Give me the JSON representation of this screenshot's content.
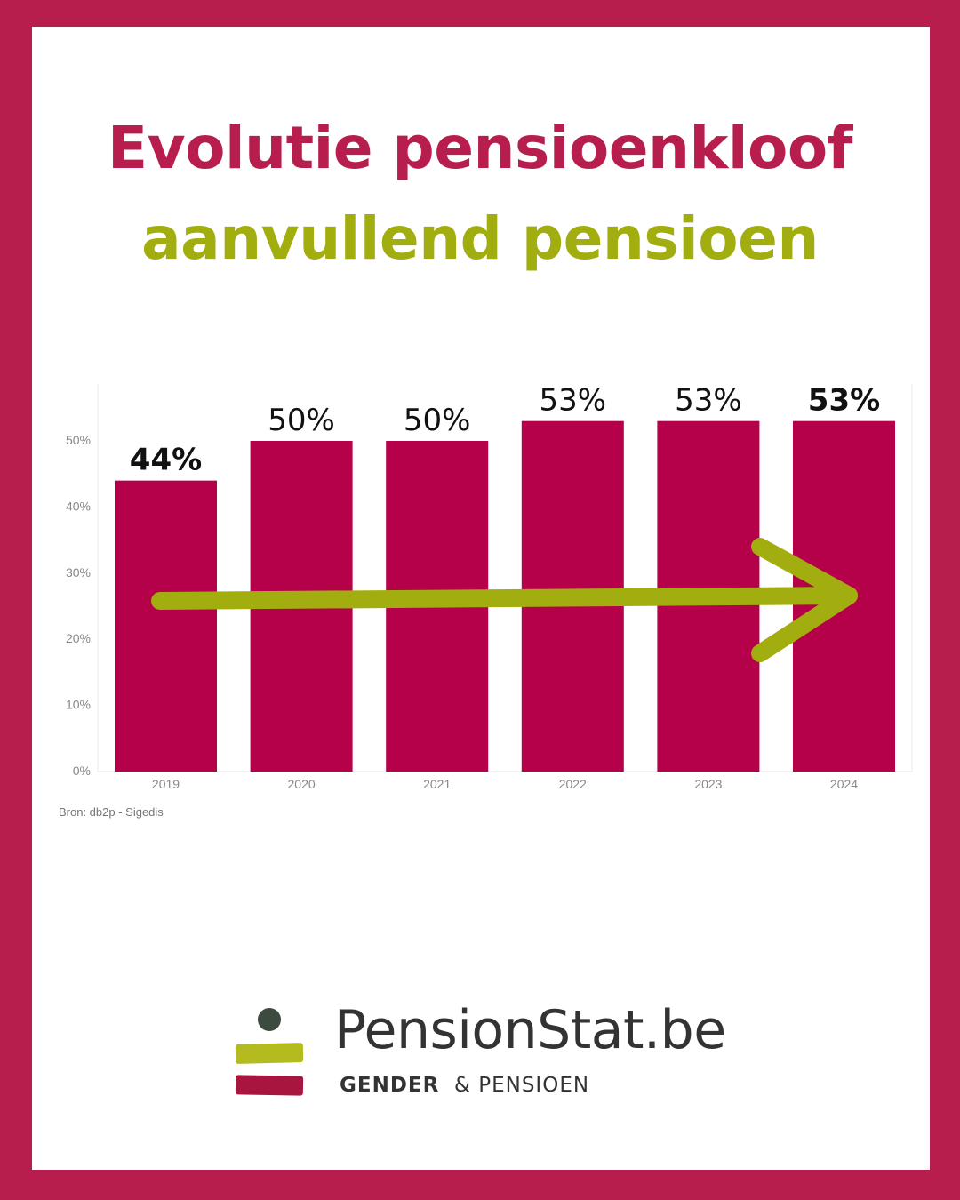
{
  "title": {
    "line1": "Evolutie pensioenkloof",
    "line2": "aanvullend pensioen"
  },
  "colors": {
    "frame": "#b81e4d",
    "bar": "#b5004a",
    "title_line1": "#b81e4d",
    "title_line2": "#a2ad0f",
    "arrow": "#a2ad0f",
    "logo_green": "#b3bb1e",
    "logo_red": "#a8163f",
    "logo_dot": "#3d4a40"
  },
  "chart_data": {
    "type": "bar",
    "categories": [
      "2019",
      "2020",
      "2021",
      "2022",
      "2023",
      "2024"
    ],
    "values": [
      44,
      50,
      50,
      53,
      53,
      53
    ],
    "data_labels": [
      "44%",
      "50%",
      "50%",
      "53%",
      "53%",
      "53%"
    ],
    "data_label_bold": [
      true,
      false,
      false,
      false,
      false,
      true
    ],
    "y_ticks": [
      0,
      10,
      20,
      30,
      40,
      50
    ],
    "y_tick_labels": [
      "0%",
      "10%",
      "20%",
      "30%",
      "40%",
      "50%"
    ],
    "ylim": [
      0,
      59
    ],
    "grid": false,
    "annotation": "upward-trend-arrow"
  },
  "source": "Bron: db2p - Sigedis",
  "logo": {
    "name": "PensionStat.be",
    "tagline_bold": "GENDER",
    "tagline_rest": "& PENSIOEN",
    "icon": "pensionstat-logo-icon"
  }
}
